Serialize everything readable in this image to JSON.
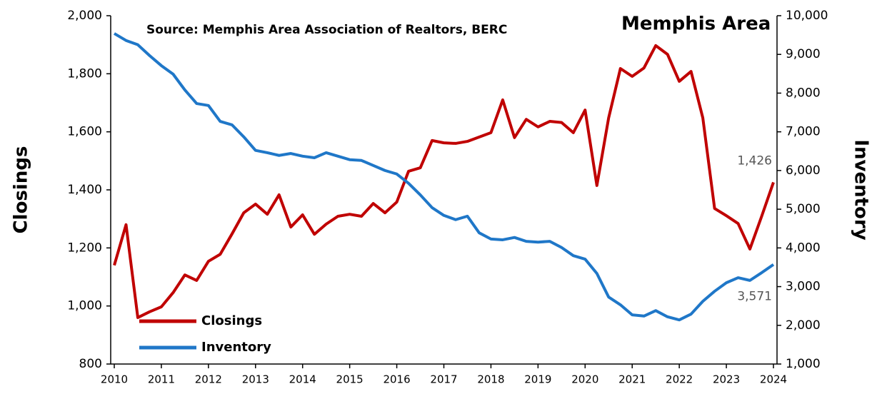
{
  "chart_data": {
    "type": "line",
    "title": "Memphis Area",
    "subtitle": "Source: Memphis Area Association of Realtors, BERC",
    "y_label": "Closings",
    "y2_label": "Inventory",
    "x": [
      2010,
      2010.25,
      2010.5,
      2010.75,
      2011,
      2011.25,
      2011.5,
      2011.75,
      2012,
      2012.25,
      2012.5,
      2012.75,
      2013,
      2013.25,
      2013.5,
      2013.75,
      2014,
      2014.25,
      2014.5,
      2014.75,
      2015,
      2015.25,
      2015.5,
      2015.75,
      2016,
      2016.25,
      2016.5,
      2016.75,
      2017,
      2017.25,
      2017.5,
      2017.75,
      2018,
      2018.25,
      2018.5,
      2018.75,
      2019,
      2019.25,
      2019.5,
      2019.75,
      2020,
      2020.25,
      2020.5,
      2020.75,
      2021,
      2021.25,
      2021.5,
      2021.75,
      2022,
      2022.25,
      2022.5,
      2022.75,
      2023,
      2023.25,
      2023.5,
      2023.75,
      2024
    ],
    "xlim": [
      2010,
      2024
    ],
    "xticks": [
      2010,
      2011,
      2012,
      2013,
      2014,
      2015,
      2016,
      2017,
      2018,
      2019,
      2020,
      2021,
      2022,
      2023,
      2024
    ],
    "ylim": [
      800,
      2000
    ],
    "yticks": [
      800,
      {
        "value": 1000,
        "label": "1,000"
      },
      {
        "value": 1200,
        "label": "1,200"
      },
      {
        "value": 1400,
        "label": "1,400"
      },
      {
        "value": 1600,
        "label": "1,600"
      },
      {
        "value": 1800,
        "label": "1,800"
      },
      {
        "value": 2000,
        "label": "2,000"
      }
    ],
    "y2lim": [
      1000,
      10000
    ],
    "y2ticks": [
      {
        "value": 1000,
        "label": "1,000"
      },
      {
        "value": 2000,
        "label": "2,000"
      },
      {
        "value": 3000,
        "label": "3,000"
      },
      {
        "value": 4000,
        "label": "4,000"
      },
      {
        "value": 5000,
        "label": "5,000"
      },
      {
        "value": 6000,
        "label": "6,000"
      },
      {
        "value": 7000,
        "label": "7,000"
      },
      {
        "value": 8000,
        "label": "8,000"
      },
      {
        "value": 9000,
        "label": "9,000"
      },
      {
        "value": 10000,
        "label": "10,000"
      }
    ],
    "legend": "lower left",
    "series": [
      {
        "name": "Closings",
        "color": "#c00000",
        "values": [
          1140,
          1280,
          960,
          980,
          997,
          1046,
          1107,
          1088,
          1154,
          1178,
          1248,
          1321,
          1351,
          1316,
          1383,
          1272,
          1314,
          1247,
          1282,
          1309,
          1316,
          1309,
          1353,
          1321,
          1358,
          1464,
          1476,
          1570,
          1562,
          1560,
          1567,
          1582,
          1597,
          1710,
          1580,
          1643,
          1617,
          1636,
          1632,
          1597,
          1675,
          1415,
          1648,
          1818,
          1791,
          1820,
          1897,
          1867,
          1774,
          1808,
          1648,
          1336,
          1311,
          1284,
          1196,
          1309,
          1426
        ],
        "value_labels": [
          null,
          null,
          null,
          null,
          null,
          null,
          null,
          null,
          null,
          null,
          null,
          null,
          null,
          null,
          null,
          null,
          null,
          null,
          null,
          null,
          null,
          null,
          null,
          null,
          null,
          null,
          null,
          null,
          null,
          null,
          null,
          null,
          null,
          null,
          null,
          null,
          null,
          null,
          null,
          null,
          null,
          null,
          null,
          null,
          null,
          null,
          null,
          null,
          null,
          null,
          null,
          null,
          null,
          null,
          null,
          null,
          "1,426"
        ]
      },
      {
        "name": "Inventory",
        "color": "#1f77c8",
        "axis": "y2",
        "values": [
          9540,
          9360,
          9250,
          8970,
          8710,
          8490,
          8080,
          7730,
          7680,
          7270,
          7180,
          6870,
          6520,
          6460,
          6390,
          6440,
          6370,
          6330,
          6460,
          6370,
          6280,
          6260,
          6130,
          6000,
          5910,
          5670,
          5370,
          5040,
          4840,
          4730,
          4820,
          4390,
          4230,
          4210,
          4270,
          4170,
          4150,
          4170,
          4010,
          3800,
          3710,
          3340,
          2730,
          2530,
          2270,
          2240,
          2380,
          2220,
          2140,
          2290,
          2620,
          2880,
          3100,
          3230,
          3160,
          3360,
          3571
        ],
        "value_labels": [
          null,
          null,
          null,
          null,
          null,
          null,
          null,
          null,
          null,
          null,
          null,
          null,
          null,
          null,
          null,
          null,
          null,
          null,
          null,
          null,
          null,
          null,
          null,
          null,
          null,
          null,
          null,
          null,
          null,
          null,
          null,
          null,
          null,
          null,
          null,
          null,
          null,
          null,
          null,
          null,
          null,
          null,
          null,
          null,
          null,
          null,
          null,
          null,
          null,
          null,
          null,
          null,
          null,
          null,
          null,
          null,
          "3,571"
        ]
      }
    ]
  }
}
